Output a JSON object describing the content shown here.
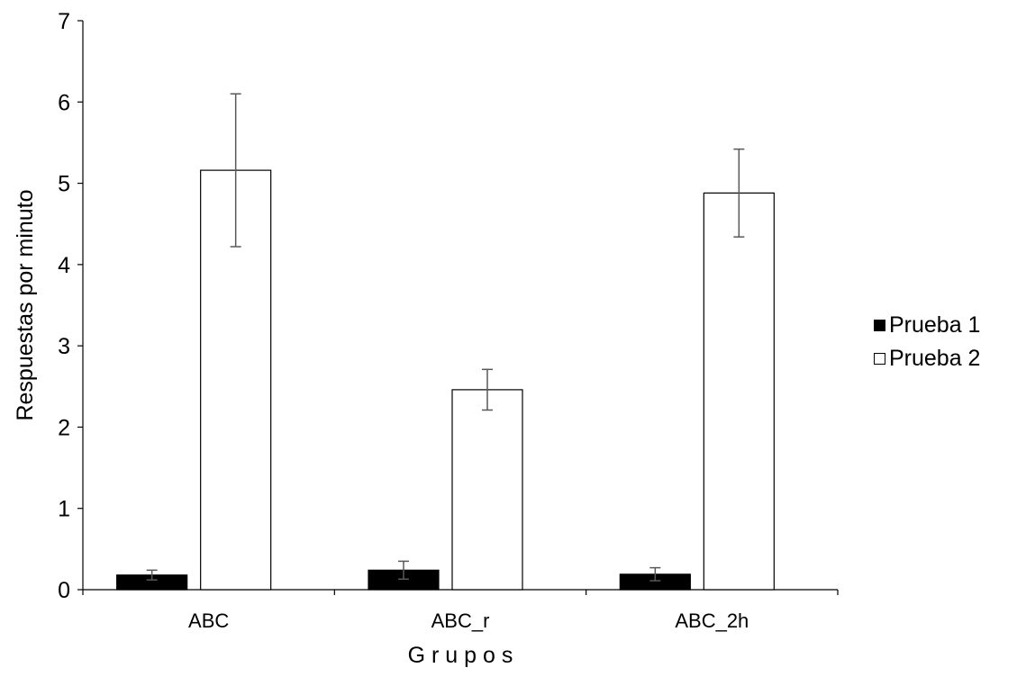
{
  "chart_data": {
    "type": "bar",
    "title": "",
    "xlabel": "G r u p o s",
    "ylabel": "Respuestas por minuto",
    "categories": [
      "ABC",
      "ABC_r",
      "ABC_2h"
    ],
    "ylim": [
      0,
      7
    ],
    "yticks": [
      "0",
      "1",
      "2",
      "3",
      "4",
      "5",
      "6",
      "7"
    ],
    "grid": false,
    "legend_position": "right",
    "series": [
      {
        "name": "Prueba 1",
        "color": "#000000",
        "values": [
          0.18,
          0.24,
          0.19
        ],
        "errors": [
          0.06,
          0.11,
          0.08
        ]
      },
      {
        "name": "Prueba 2",
        "color": "#ffffff",
        "values": [
          5.16,
          2.46,
          4.88
        ],
        "errors": [
          0.94,
          0.25,
          0.54
        ]
      }
    ]
  }
}
